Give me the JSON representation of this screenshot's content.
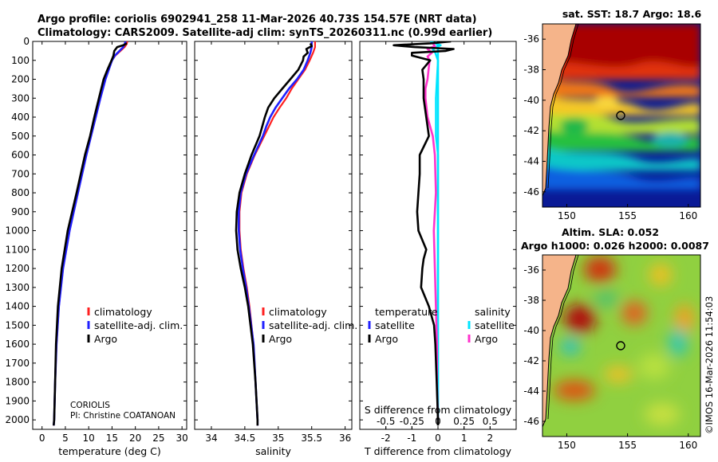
{
  "header": {
    "line1": "Argo profile: coriolis 6902941_258 11-Mar-2026 40.73S 154.57E (NRT data)",
    "line2": "Climatology: CARS2009. Satellite-adj clim: synTS_20260311.nc (0.99d earlier)"
  },
  "colors": {
    "climatology": "#ff2020",
    "satellite": "#2020ff",
    "argo": "#000000",
    "sat_temp": "#00e5ff",
    "argo_sal": "#ff33cc",
    "land": "#f5b48a"
  },
  "depth_axis": {
    "ticks": [
      "0",
      "100",
      "200",
      "300",
      "400",
      "500",
      "600",
      "700",
      "800",
      "900",
      "1000",
      "1100",
      "1200",
      "1300",
      "1400",
      "1500",
      "1600",
      "1700",
      "1800",
      "1900",
      "2000"
    ]
  },
  "chart_data": [
    {
      "type": "line",
      "name": "temperature-profile",
      "xlabel": "temperature (deg C)",
      "xlim": [
        -2,
        31
      ],
      "ylim": [
        2050,
        0
      ],
      "xticks": [
        0,
        5,
        10,
        15,
        20,
        25,
        30
      ],
      "xtick_labels": [
        "0",
        "5",
        "10",
        "15",
        "20",
        "25",
        "30"
      ],
      "series": [
        {
          "name": "climatology",
          "depth": [
            0,
            15,
            30,
            50,
            75,
            100,
            150,
            200,
            300,
            400,
            500,
            600,
            800,
            1000,
            1200,
            1400,
            1600,
            1800,
            2000,
            2030
          ],
          "values": [
            18.3,
            18.1,
            17.7,
            16.8,
            15.7,
            15.0,
            14.3,
            13.6,
            12.5,
            11.5,
            10.5,
            9.5,
            7.7,
            5.9,
            4.5,
            3.6,
            3.1,
            2.8,
            2.6,
            2.5
          ]
        },
        {
          "name": "satellite-adj. clim.",
          "depth": [
            0,
            15,
            30,
            50,
            75,
            100,
            150,
            200,
            300,
            400,
            500,
            600,
            800,
            1000,
            1200,
            1400,
            1600,
            1800,
            2000,
            2030
          ],
          "values": [
            17.9,
            17.7,
            17.4,
            16.6,
            15.6,
            15.0,
            14.3,
            13.6,
            12.5,
            11.5,
            10.5,
            9.5,
            7.7,
            5.9,
            4.5,
            3.6,
            3.1,
            2.8,
            2.6,
            2.5
          ]
        },
        {
          "name": "Argo",
          "depth": [
            10,
            20,
            30,
            40,
            50,
            60,
            75,
            100,
            150,
            200,
            300,
            400,
            500,
            600,
            800,
            1000,
            1200,
            1400,
            1600,
            1800,
            2000,
            2030
          ],
          "values": [
            18.2,
            17.4,
            16.1,
            15.8,
            15.5,
            15.4,
            15.3,
            14.9,
            14.0,
            13.2,
            12.2,
            11.2,
            10.3,
            9.2,
            7.4,
            5.5,
            4.2,
            3.4,
            3.0,
            2.8,
            2.6,
            2.5
          ]
        }
      ],
      "legend": [
        "climatology",
        "satellite-adj. clim.",
        "Argo"
      ],
      "annotations": [
        "CORIOLIS",
        "PI: Christine COATANOAN"
      ]
    },
    {
      "type": "line",
      "name": "salinity-profile",
      "xlabel": "salinity",
      "xlim": [
        33.75,
        36.1
      ],
      "ylim": [
        2050,
        0
      ],
      "xticks": [
        34,
        34.5,
        35,
        35.5,
        36
      ],
      "xtick_labels": [
        "34",
        "34.5",
        "35",
        "35.5",
        "36"
      ],
      "series": [
        {
          "name": "climatology",
          "depth": [
            0,
            30,
            60,
            100,
            150,
            200,
            250,
            300,
            350,
            400,
            450,
            500,
            600,
            700,
            800,
            900,
            1000,
            1100,
            1200,
            1300,
            1400,
            1600,
            1800,
            2000,
            2030
          ],
          "values": [
            35.55,
            35.55,
            35.52,
            35.47,
            35.4,
            35.3,
            35.2,
            35.12,
            35.02,
            34.93,
            34.86,
            34.79,
            34.65,
            34.53,
            34.45,
            34.42,
            34.42,
            34.44,
            34.48,
            34.53,
            34.57,
            34.63,
            34.66,
            34.69,
            34.69
          ]
        },
        {
          "name": "satellite-adj. clim.",
          "depth": [
            0,
            30,
            60,
            100,
            150,
            200,
            250,
            300,
            350,
            400,
            450,
            500,
            600,
            700,
            800,
            900,
            1000,
            1100,
            1200,
            1300,
            1400,
            1600,
            1800,
            2000,
            2030
          ],
          "values": [
            35.5,
            35.5,
            35.48,
            35.44,
            35.38,
            35.28,
            35.16,
            35.06,
            34.96,
            34.88,
            34.82,
            34.77,
            34.64,
            34.52,
            34.44,
            34.41,
            34.41,
            34.43,
            34.47,
            34.52,
            34.56,
            34.63,
            34.66,
            34.69,
            34.69
          ]
        },
        {
          "name": "Argo",
          "depth": [
            10,
            25,
            40,
            60,
            80,
            100,
            150,
            200,
            250,
            300,
            350,
            400,
            450,
            500,
            600,
            700,
            800,
            900,
            1000,
            1100,
            1200,
            1300,
            1400,
            1600,
            1800,
            2000,
            2030
          ],
          "values": [
            35.48,
            35.5,
            35.42,
            35.44,
            35.38,
            35.37,
            35.3,
            35.18,
            35.06,
            34.94,
            34.85,
            34.8,
            34.76,
            34.72,
            34.6,
            34.5,
            34.42,
            34.38,
            34.37,
            34.39,
            34.44,
            34.5,
            34.55,
            34.62,
            34.66,
            34.69,
            34.69
          ]
        }
      ],
      "legend": [
        "climatology",
        "satellite-adj. clim.",
        "Argo"
      ]
    },
    {
      "type": "line",
      "name": "difference-profile",
      "xlabel": "T difference from climatology",
      "s_axis_title": "S difference from climatology",
      "xlim": [
        -3.0,
        3.0
      ],
      "ylim": [
        2050,
        0
      ],
      "xticks": [
        -2,
        -1,
        0,
        1,
        2
      ],
      "xtick_labels": [
        "-2",
        "-1",
        "0",
        "1",
        "2"
      ],
      "s_ticks": [
        -0.5,
        -0.25,
        0,
        0.25,
        0.5
      ],
      "s_tick_labels": [
        "-0.5",
        "-0.25",
        "0",
        "0.25",
        "0.5"
      ],
      "series": [
        {
          "name": "temperature satellite",
          "depth": [
            0,
            20,
            40,
            60,
            100,
            200,
            300,
            400,
            600,
            800,
            1000,
            1200,
            1400,
            1600,
            1800,
            2000
          ],
          "values": [
            -0.3,
            0.1,
            -0.2,
            -0.1,
            0.0,
            0.0,
            0.0,
            0.0,
            0.0,
            0.0,
            0.0,
            0.0,
            0.0,
            0.0,
            0.0,
            0.0
          ]
        },
        {
          "name": "temperature Argo",
          "depth": [
            0,
            10,
            20,
            30,
            40,
            50,
            60,
            75,
            100,
            150,
            200,
            300,
            400,
            500,
            600,
            700,
            800,
            900,
            1000,
            1100,
            1150,
            1200,
            1300,
            1400,
            1500,
            1600,
            1800,
            2000,
            2030
          ],
          "values": [
            0.5,
            -0.3,
            -1.7,
            -0.9,
            0.6,
            0.3,
            -1.0,
            -1.0,
            -0.3,
            -0.6,
            -0.55,
            -0.55,
            -0.45,
            -0.35,
            -0.7,
            -0.7,
            -0.75,
            -0.8,
            -0.75,
            -0.45,
            -0.55,
            -0.6,
            -0.65,
            -0.35,
            -0.15,
            -0.1,
            -0.05,
            0.0,
            0.0
          ]
        },
        {
          "name": "salinity satellite",
          "depth": [
            0,
            30,
            60,
            100,
            200,
            300,
            400,
            500,
            600,
            800,
            1000,
            1200,
            1400,
            1600,
            1800,
            2000
          ],
          "values": [
            -0.02,
            0.0,
            0.0,
            0.0,
            -0.01,
            -0.02,
            -0.02,
            -0.02,
            0.0,
            0.0,
            0.0,
            0.0,
            0.0,
            0.0,
            0.0,
            0.0
          ]
        },
        {
          "name": "salinity Argo",
          "depth": [
            10,
            25,
            40,
            60,
            80,
            100,
            150,
            200,
            250,
            300,
            400,
            500,
            600,
            800,
            1000,
            1200,
            1400,
            1600,
            1800,
            2000
          ],
          "values": [
            -0.05,
            -0.03,
            -0.1,
            -0.06,
            -0.1,
            -0.08,
            -0.09,
            -0.1,
            -0.12,
            -0.12,
            -0.1,
            -0.05,
            -0.03,
            -0.02,
            -0.04,
            -0.03,
            -0.02,
            -0.01,
            -0.01,
            0.0
          ]
        }
      ],
      "legend_temperature_title": "temperature",
      "legend_salinity_title": "salinity",
      "legend": [
        "satellite",
        "Argo"
      ]
    },
    {
      "type": "heatmap",
      "name": "sst-map",
      "title": "sat. SST: 18.7 Argo: 18.6",
      "xlim": [
        148,
        161
      ],
      "ylim": [
        -47,
        -35
      ],
      "xticks": [
        150,
        155,
        160
      ],
      "xtick_labels": [
        "150",
        "155",
        "160"
      ],
      "yticks": [
        -36,
        -38,
        -40,
        -42,
        -44,
        -46
      ],
      "ytick_labels": [
        "-36",
        "-38",
        "-40",
        "-42",
        "-44",
        "-46"
      ],
      "float_position": {
        "lon": 154.57,
        "lat": -40.73
      }
    },
    {
      "type": "heatmap",
      "name": "sla-map",
      "title": "Altim. SLA: 0.052",
      "subtitle": "Argo h1000: 0.026 h2000: 0.0087",
      "xlim": [
        148,
        161
      ],
      "ylim": [
        -47,
        -35
      ],
      "xticks": [
        150,
        155,
        160
      ],
      "xtick_labels": [
        "150",
        "155",
        "160"
      ],
      "yticks": [
        -36,
        -38,
        -40,
        -42,
        -44,
        -46
      ],
      "ytick_labels": [
        "-36",
        "-38",
        "-40",
        "-42",
        "-44",
        "-46"
      ],
      "float_position": {
        "lon": 154.57,
        "lat": -40.73
      }
    }
  ],
  "watermark": "©IMOS 16-Mar-2026 11:54:03"
}
